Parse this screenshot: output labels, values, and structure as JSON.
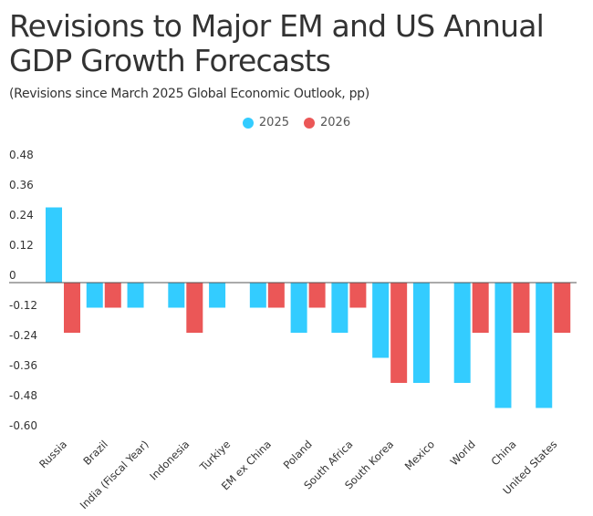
{
  "chart_data": {
    "type": "bar",
    "title": "Revisions to Major EM and US Annual GDP Growth Forecasts",
    "subtitle": "(Revisions since March 2025 Global Economic Outlook, pp)",
    "xlabel": "",
    "ylabel": "",
    "ylim": [
      -0.6,
      0.48
    ],
    "yticks": [
      0.48,
      0.36,
      0.24,
      0.12,
      0,
      -0.12,
      -0.24,
      -0.36,
      -0.48,
      -0.6
    ],
    "ytick_labels": [
      "0.48",
      "0.36",
      "0.24",
      "0.12",
      "0",
      "-0.12",
      "-0.24",
      "-0.36",
      "-0.48",
      "-0.60"
    ],
    "grid": false,
    "legend_position": "top-center",
    "categories": [
      "Russia",
      "Brazil",
      "India (Fiscal Year)",
      "Indonesia",
      "Turkiye",
      "EM ex China",
      "Poland",
      "South Africa",
      "South Korea",
      "Mexico",
      "World",
      "China",
      "United States"
    ],
    "series": [
      {
        "name": "2025",
        "color": "#33CCFF",
        "values": [
          0.3,
          -0.1,
          -0.1,
          -0.1,
          -0.1,
          -0.1,
          -0.2,
          -0.2,
          -0.3,
          -0.4,
          -0.4,
          -0.5,
          -0.5
        ]
      },
      {
        "name": "2026",
        "color": "#EB5757",
        "values": [
          -0.2,
          -0.1,
          null,
          -0.2,
          null,
          -0.1,
          -0.1,
          -0.1,
          -0.4,
          null,
          -0.2,
          -0.2,
          -0.2
        ]
      }
    ]
  }
}
